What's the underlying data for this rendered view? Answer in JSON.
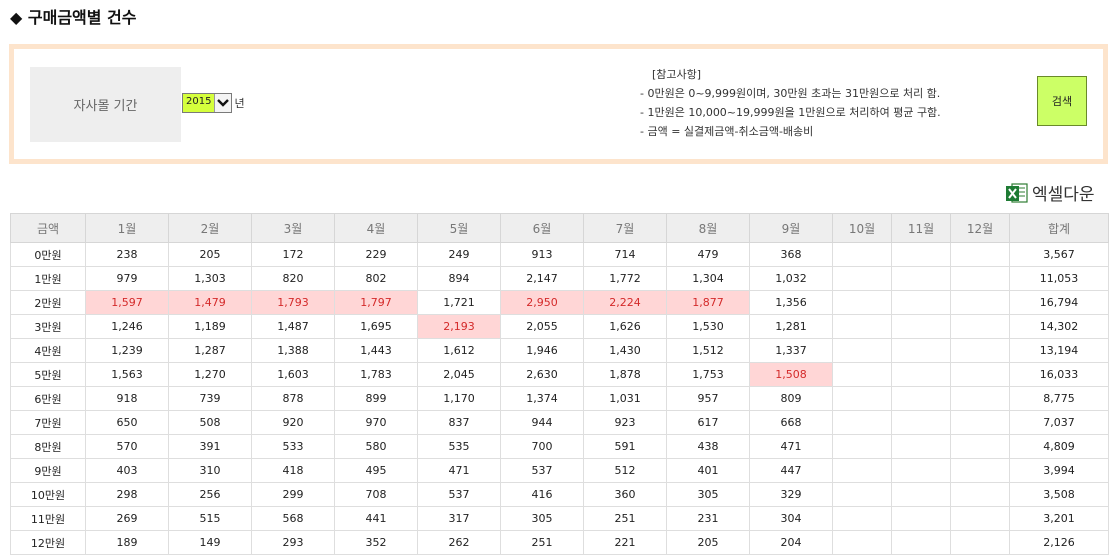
{
  "title": "◆ 구매금액별 건수",
  "filter": {
    "period_label": "자사몰 기간",
    "year_value": "2015",
    "year_unit": "년",
    "notes_title": "[참고사항]",
    "notes": [
      "- 0만원은 0~9,999원이며, 30만원 초과는 31만원으로 처리 함.",
      "- 1만원은 10,000~19,999원을 1만원으로 처리하여 평균 구함.",
      "- 금액 = 실결제금액-취소금액-배송비"
    ],
    "search_label": "검색"
  },
  "excel_label": "엑셀다운",
  "table": {
    "headers": [
      "금액",
      "1월",
      "2월",
      "3월",
      "4월",
      "5월",
      "6월",
      "7월",
      "8월",
      "9월",
      "10월",
      "11월",
      "12월",
      "합계"
    ],
    "rows": [
      {
        "label": "0만원",
        "cells": [
          "238",
          "205",
          "172",
          "229",
          "249",
          "913",
          "714",
          "479",
          "368",
          "",
          "",
          "",
          "3,567"
        ]
      },
      {
        "label": "1만원",
        "cells": [
          "979",
          "1,303",
          "820",
          "802",
          "894",
          "2,147",
          "1,772",
          "1,304",
          "1,032",
          "",
          "",
          "",
          "11,053"
        ]
      },
      {
        "label": "2만원",
        "cells": [
          "1,597",
          "1,479",
          "1,793",
          "1,797",
          "1,721",
          "2,950",
          "2,224",
          "1,877",
          "1,356",
          "",
          "",
          "",
          "16,794"
        ]
      },
      {
        "label": "3만원",
        "cells": [
          "1,246",
          "1,189",
          "1,487",
          "1,695",
          "2,193",
          "2,055",
          "1,626",
          "1,530",
          "1,281",
          "",
          "",
          "",
          "14,302"
        ]
      },
      {
        "label": "4만원",
        "cells": [
          "1,239",
          "1,287",
          "1,388",
          "1,443",
          "1,612",
          "1,946",
          "1,430",
          "1,512",
          "1,337",
          "",
          "",
          "",
          "13,194"
        ]
      },
      {
        "label": "5만원",
        "cells": [
          "1,563",
          "1,270",
          "1,603",
          "1,783",
          "2,045",
          "2,630",
          "1,878",
          "1,753",
          "1,508",
          "",
          "",
          "",
          "16,033"
        ]
      },
      {
        "label": "6만원",
        "cells": [
          "918",
          "739",
          "878",
          "899",
          "1,170",
          "1,374",
          "1,031",
          "957",
          "809",
          "",
          "",
          "",
          "8,775"
        ]
      },
      {
        "label": "7만원",
        "cells": [
          "650",
          "508",
          "920",
          "970",
          "837",
          "944",
          "923",
          "617",
          "668",
          "",
          "",
          "",
          "7,037"
        ]
      },
      {
        "label": "8만원",
        "cells": [
          "570",
          "391",
          "533",
          "580",
          "535",
          "700",
          "591",
          "438",
          "471",
          "",
          "",
          "",
          "4,809"
        ]
      },
      {
        "label": "9만원",
        "cells": [
          "403",
          "310",
          "418",
          "495",
          "471",
          "537",
          "512",
          "401",
          "447",
          "",
          "",
          "",
          "3,994"
        ]
      },
      {
        "label": "10만원",
        "cells": [
          "298",
          "256",
          "299",
          "708",
          "537",
          "416",
          "360",
          "305",
          "329",
          "",
          "",
          "",
          "3,508"
        ]
      },
      {
        "label": "11만원",
        "cells": [
          "269",
          "515",
          "568",
          "441",
          "317",
          "305",
          "251",
          "231",
          "304",
          "",
          "",
          "",
          "3,201"
        ]
      },
      {
        "label": "12만원",
        "cells": [
          "189",
          "149",
          "293",
          "352",
          "262",
          "251",
          "221",
          "205",
          "204",
          "",
          "",
          "",
          "2,126"
        ]
      }
    ],
    "highlights": [
      [
        2,
        0
      ],
      [
        2,
        1
      ],
      [
        2,
        2
      ],
      [
        2,
        3
      ],
      [
        2,
        5
      ],
      [
        2,
        6
      ],
      [
        2,
        7
      ],
      [
        3,
        4
      ],
      [
        5,
        8
      ]
    ],
    "highlight_color": "#ffd6d6",
    "highlight_text_color": "#d42a2a",
    "header_bg": "#eeeeee"
  },
  "colors": {
    "panel_border": "#fde4cc",
    "search_button": "#ccff66",
    "year_highlight": "#d5ff3c"
  }
}
